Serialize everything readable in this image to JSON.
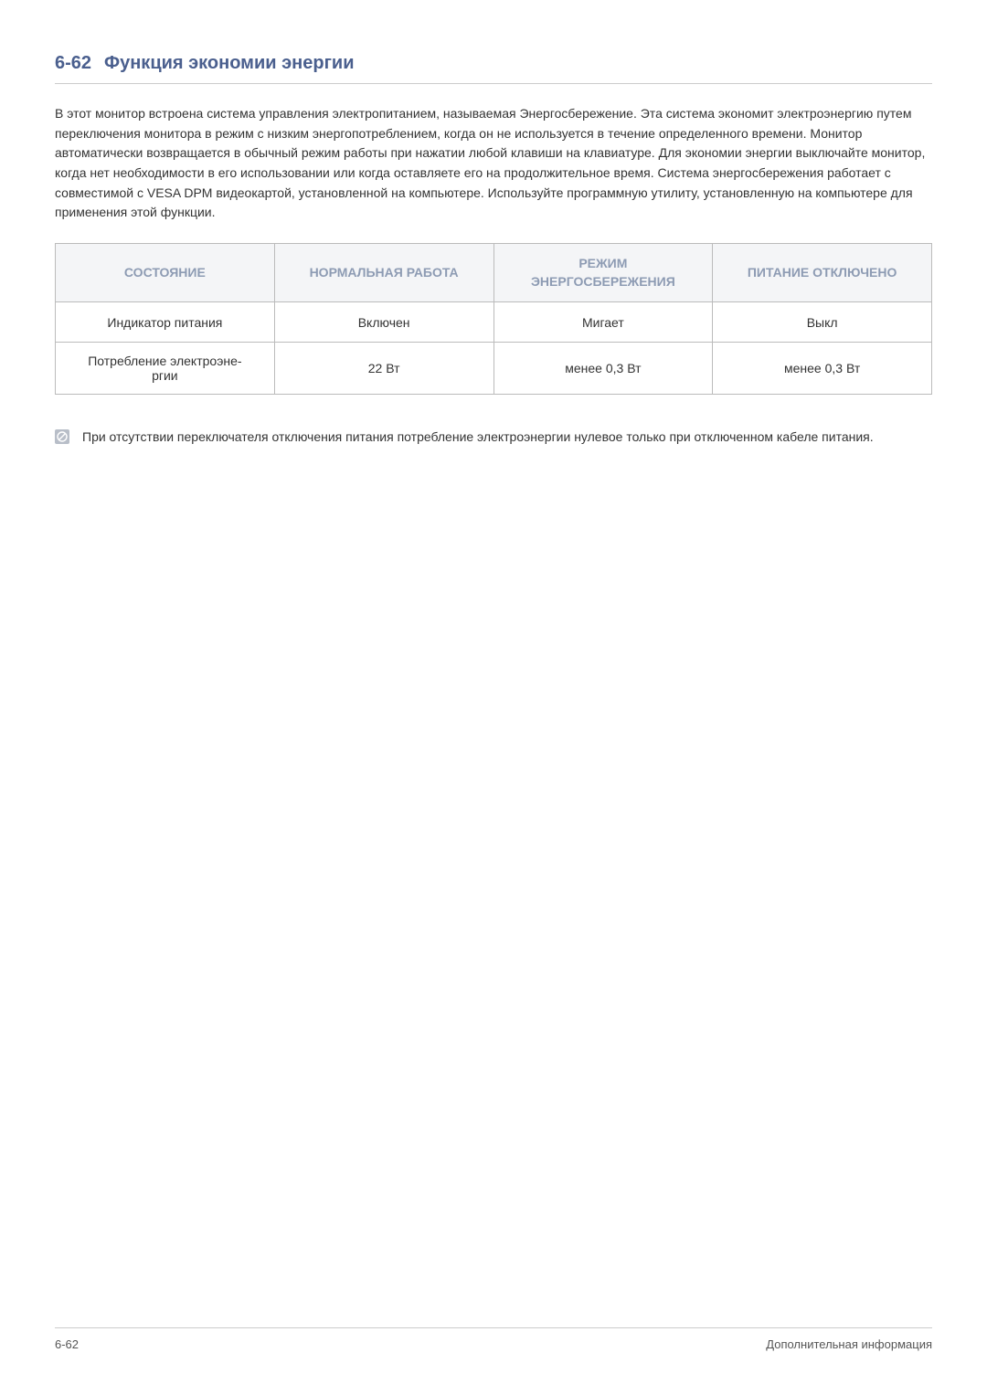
{
  "heading": {
    "number": "6-62",
    "title": "Функция экономии энергии",
    "color": "#4a5f8e"
  },
  "paragraph": "В этот монитор встроена система управления электропитанием, называемая Энергосбережение. Эта система экономит электроэнергию путем переключения монитора в режим с низким энергопотреблением, когда он не используется в течение определенного времени. Монитор автоматически возвращается в обычный режим работы при нажатии любой клавиши на клавиатуре. Для экономии энергии выключайте монитор, когда нет необходимости в его использовании или когда оставляете его на продолжительное время. Система энергосбережения работает с совместимой с VESA DPM видеокартой, установленной на компьютере. Используйте программную утилиту, установленную на компьютере для применения этой функции.",
  "table": {
    "header_bg": "#f4f5f7",
    "header_color": "#8d9bb3",
    "columns": [
      "СОСТОЯНИЕ",
      "НОРМАЛЬНАЯ РАБОТА",
      "РЕЖИМ ЭНЕРГОСБЕРЕЖЕНИЯ",
      "ПИТАНИЕ ОТКЛЮЧЕНО"
    ],
    "rows": [
      [
        "Индикатор питания",
        "Включен",
        "Мигает",
        "Выкл"
      ],
      [
        "Потребление электроэне-ргии",
        "22 Вт",
        "менее 0,3 Вт",
        "менее 0,3 Вт"
      ]
    ]
  },
  "note": {
    "icon_bg": "#b8bec8",
    "icon_fg": "#ffffff",
    "text": "При отсутствии переключателя отключения питания потребление электроэнергии нулевое только при отключенном кабеле питания."
  },
  "footer": {
    "left": "6-62",
    "right": "Дополнительная информация"
  }
}
